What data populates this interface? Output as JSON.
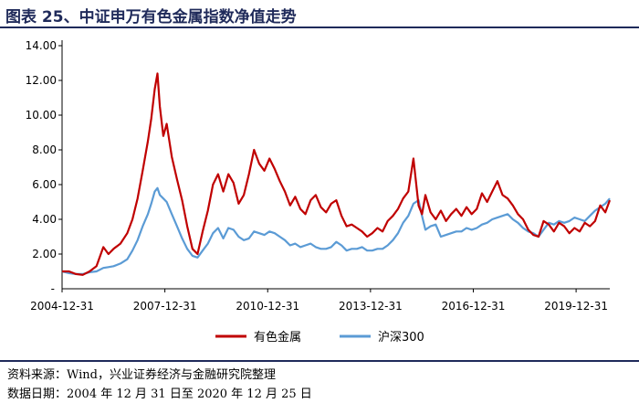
{
  "header": {
    "title": "图表 25、中证申万有色金属指数净值走势"
  },
  "footer": {
    "source": "资料来源：Wind，兴业证券经济与金融研究院整理",
    "data_date": "数据日期：2004 年 12 月 31 日至 2020 年 12 月 25 日"
  },
  "colors": {
    "series_metal": "#c00000",
    "series_hs300": "#5b9bd5",
    "axis": "#000000"
  },
  "chart_data": {
    "type": "line",
    "title": "中证申万有色金属指数净值走势",
    "xlabel": "",
    "ylabel": "",
    "x_range": [
      2004.997,
      2020.98
    ],
    "ylim": [
      0,
      14
    ],
    "y_ticks": [
      2,
      4,
      6,
      8,
      10,
      12,
      14
    ],
    "y_tick_labels": [
      "2.00",
      "4.00",
      "6.00",
      "8.00",
      "10.00",
      "12.00",
      "14.00"
    ],
    "y_zero_label": "-",
    "x_ticks": [
      2004.997,
      2007.997,
      2010.997,
      2013.997,
      2016.997,
      2019.997
    ],
    "x_tick_labels": [
      "2004-12-31",
      "2007-12-31",
      "2010-12-31",
      "2013-12-31",
      "2016-12-31",
      "2019-12-31"
    ],
    "grid": false,
    "legend_position": "bottom-center",
    "series": [
      {
        "name": "有色金属",
        "x": [
          2005.0,
          2005.2,
          2005.4,
          2005.6,
          2005.8,
          2006.0,
          2006.2,
          2006.35,
          2006.5,
          2006.7,
          2006.9,
          2007.05,
          2007.2,
          2007.35,
          2007.5,
          2007.6,
          2007.7,
          2007.78,
          2007.85,
          2007.95,
          2008.05,
          2008.2,
          2008.35,
          2008.5,
          2008.65,
          2008.8,
          2008.95,
          2009.1,
          2009.25,
          2009.4,
          2009.55,
          2009.7,
          2009.85,
          2010.0,
          2010.15,
          2010.3,
          2010.45,
          2010.6,
          2010.75,
          2010.9,
          2011.05,
          2011.2,
          2011.35,
          2011.5,
          2011.65,
          2011.8,
          2011.95,
          2012.1,
          2012.25,
          2012.4,
          2012.55,
          2012.7,
          2012.85,
          2013.0,
          2013.15,
          2013.3,
          2013.45,
          2013.6,
          2013.75,
          2013.9,
          2014.05,
          2014.2,
          2014.35,
          2014.5,
          2014.65,
          2014.8,
          2014.95,
          2015.1,
          2015.25,
          2015.4,
          2015.5,
          2015.6,
          2015.75,
          2015.9,
          2016.05,
          2016.2,
          2016.35,
          2016.5,
          2016.65,
          2016.8,
          2016.95,
          2017.1,
          2017.25,
          2017.4,
          2017.55,
          2017.7,
          2017.85,
          2018.0,
          2018.15,
          2018.3,
          2018.45,
          2018.6,
          2018.75,
          2018.9,
          2019.05,
          2019.2,
          2019.35,
          2019.5,
          2019.65,
          2019.8,
          2019.95,
          2020.1,
          2020.25,
          2020.4,
          2020.55,
          2020.7,
          2020.85,
          2020.98
        ],
        "values": [
          1.0,
          1.0,
          0.85,
          0.8,
          1.0,
          1.3,
          2.4,
          2.0,
          2.3,
          2.6,
          3.2,
          4.0,
          5.2,
          6.8,
          8.5,
          9.8,
          11.5,
          12.4,
          10.5,
          8.8,
          9.5,
          7.6,
          6.3,
          5.1,
          3.6,
          2.3,
          2.0,
          3.3,
          4.5,
          6.0,
          6.6,
          5.6,
          6.6,
          6.1,
          4.9,
          5.4,
          6.6,
          8.0,
          7.2,
          6.8,
          7.5,
          6.9,
          6.2,
          5.6,
          4.8,
          5.3,
          4.6,
          4.3,
          5.1,
          5.4,
          4.7,
          4.4,
          4.9,
          5.1,
          4.2,
          3.6,
          3.7,
          3.5,
          3.3,
          3.0,
          3.2,
          3.5,
          3.3,
          3.9,
          4.2,
          4.6,
          5.2,
          5.6,
          7.5,
          4.8,
          4.3,
          5.4,
          4.4,
          4.0,
          4.5,
          3.9,
          4.3,
          4.6,
          4.2,
          4.7,
          4.3,
          4.6,
          5.5,
          5.0,
          5.6,
          6.2,
          5.4,
          5.2,
          4.8,
          4.3,
          4.0,
          3.4,
          3.1,
          3.0,
          3.9,
          3.7,
          3.3,
          3.8,
          3.6,
          3.2,
          3.5,
          3.3,
          3.8,
          3.6,
          3.9,
          4.8,
          4.4,
          5.1
        ]
      },
      {
        "name": "沪深300",
        "x": [
          2005.0,
          2005.2,
          2005.4,
          2005.6,
          2005.8,
          2006.0,
          2006.2,
          2006.35,
          2006.5,
          2006.7,
          2006.9,
          2007.05,
          2007.2,
          2007.35,
          2007.5,
          2007.6,
          2007.7,
          2007.78,
          2007.85,
          2007.95,
          2008.05,
          2008.2,
          2008.35,
          2008.5,
          2008.65,
          2008.8,
          2008.95,
          2009.1,
          2009.25,
          2009.4,
          2009.55,
          2009.7,
          2009.85,
          2010.0,
          2010.15,
          2010.3,
          2010.45,
          2010.6,
          2010.75,
          2010.9,
          2011.05,
          2011.2,
          2011.35,
          2011.5,
          2011.65,
          2011.8,
          2011.95,
          2012.1,
          2012.25,
          2012.4,
          2012.55,
          2012.7,
          2012.85,
          2013.0,
          2013.15,
          2013.3,
          2013.45,
          2013.6,
          2013.75,
          2013.9,
          2014.05,
          2014.2,
          2014.35,
          2014.5,
          2014.65,
          2014.8,
          2014.95,
          2015.1,
          2015.25,
          2015.4,
          2015.5,
          2015.6,
          2015.75,
          2015.9,
          2016.05,
          2016.2,
          2016.35,
          2016.5,
          2016.65,
          2016.8,
          2016.95,
          2017.1,
          2017.25,
          2017.4,
          2017.55,
          2017.7,
          2017.85,
          2018.0,
          2018.15,
          2018.3,
          2018.45,
          2018.6,
          2018.75,
          2018.9,
          2019.05,
          2019.2,
          2019.35,
          2019.5,
          2019.65,
          2019.8,
          2019.95,
          2020.1,
          2020.25,
          2020.4,
          2020.55,
          2020.7,
          2020.85,
          2020.98
        ],
        "values": [
          1.0,
          0.9,
          0.85,
          0.85,
          0.95,
          1.0,
          1.2,
          1.25,
          1.3,
          1.45,
          1.7,
          2.2,
          2.8,
          3.6,
          4.3,
          4.9,
          5.6,
          5.8,
          5.4,
          5.2,
          5.0,
          4.3,
          3.6,
          2.9,
          2.3,
          1.9,
          1.8,
          2.2,
          2.6,
          3.2,
          3.5,
          2.9,
          3.5,
          3.4,
          3.0,
          2.8,
          2.9,
          3.3,
          3.2,
          3.1,
          3.3,
          3.2,
          3.0,
          2.8,
          2.5,
          2.6,
          2.4,
          2.5,
          2.6,
          2.4,
          2.3,
          2.3,
          2.4,
          2.7,
          2.5,
          2.2,
          2.3,
          2.3,
          2.4,
          2.2,
          2.2,
          2.3,
          2.3,
          2.5,
          2.8,
          3.2,
          3.8,
          4.2,
          4.9,
          5.1,
          4.2,
          3.4,
          3.6,
          3.7,
          3.0,
          3.1,
          3.2,
          3.3,
          3.3,
          3.5,
          3.4,
          3.5,
          3.7,
          3.8,
          4.0,
          4.1,
          4.2,
          4.3,
          4.0,
          3.8,
          3.5,
          3.3,
          3.2,
          3.0,
          3.4,
          3.8,
          3.7,
          3.9,
          3.8,
          3.9,
          4.1,
          4.0,
          3.9,
          4.2,
          4.5,
          4.7,
          4.9,
          5.2
        ]
      }
    ]
  }
}
